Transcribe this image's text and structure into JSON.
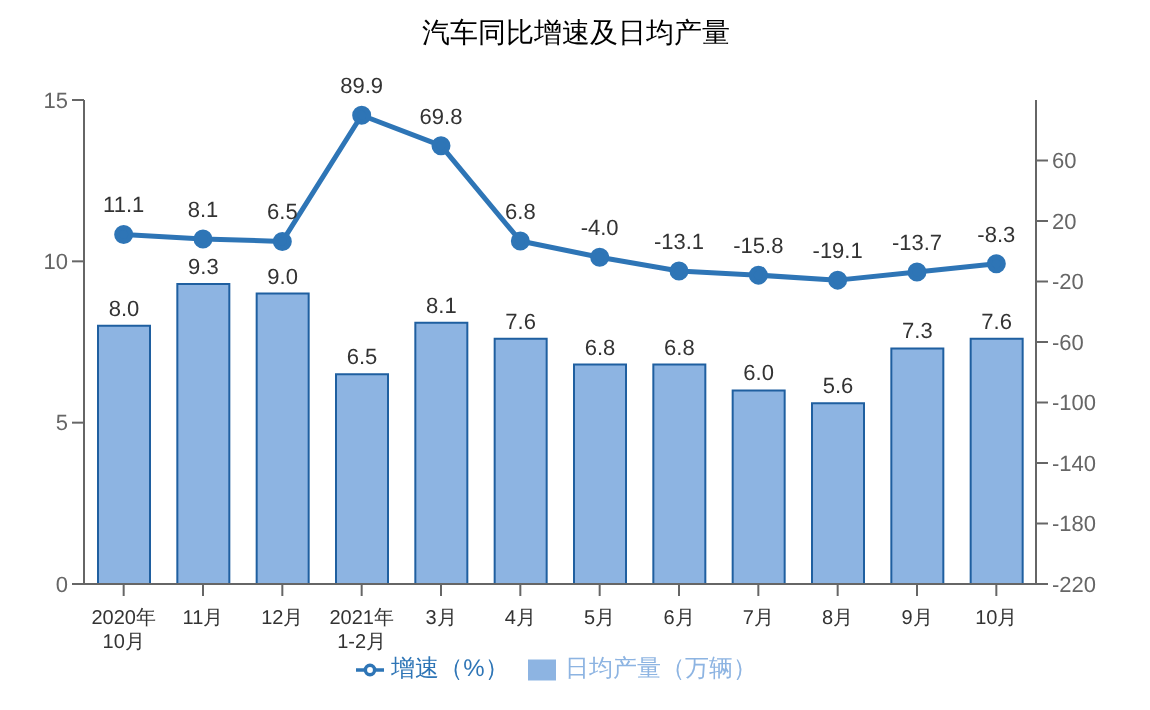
{
  "chart_data": {
    "type": "bar",
    "title": "汽车同比增速及日均产量",
    "categories": [
      "2020年\n10月",
      "11月",
      "12月",
      "2021年\n1-2月",
      "3月",
      "4月",
      "5月",
      "6月",
      "7月",
      "8月",
      "9月",
      "10月"
    ],
    "series": [
      {
        "name": "日均产量（万辆）",
        "color": "#8db4e2",
        "values": [
          8.0,
          9.3,
          9.0,
          6.5,
          8.1,
          7.6,
          6.8,
          6.8,
          6.0,
          5.6,
          7.3,
          7.6
        ],
        "value_labels": [
          "8.0",
          "9.3",
          "9.0",
          "6.5",
          "8.1",
          "7.6",
          "6.8",
          "6.8",
          "6.0",
          "5.6",
          "7.3",
          "7.6"
        ]
      },
      {
        "name": "增速（%）",
        "type": "line",
        "axis": "y2",
        "color": "#2e75b6",
        "values": [
          11.1,
          8.1,
          6.5,
          89.9,
          69.8,
          6.8,
          -4.0,
          -13.1,
          -15.8,
          -19.1,
          -13.7,
          -8.3
        ],
        "value_labels": [
          "11.1",
          "8.1",
          "6.5",
          "89.9",
          "69.8",
          "6.8",
          "-4.0",
          "-13.1",
          "-15.8",
          "-19.1",
          "-13.7",
          "-8.3"
        ]
      }
    ],
    "ylim": [
      0,
      15
    ],
    "yticks": [
      0,
      5,
      10,
      15
    ],
    "y2lim": [
      -220,
      100
    ],
    "y2ticks": [
      -220,
      -180,
      -140,
      -100,
      -60,
      -20,
      20,
      60
    ],
    "grid": false,
    "legend": "bottom",
    "marker": "circle",
    "line_style": "solid"
  }
}
